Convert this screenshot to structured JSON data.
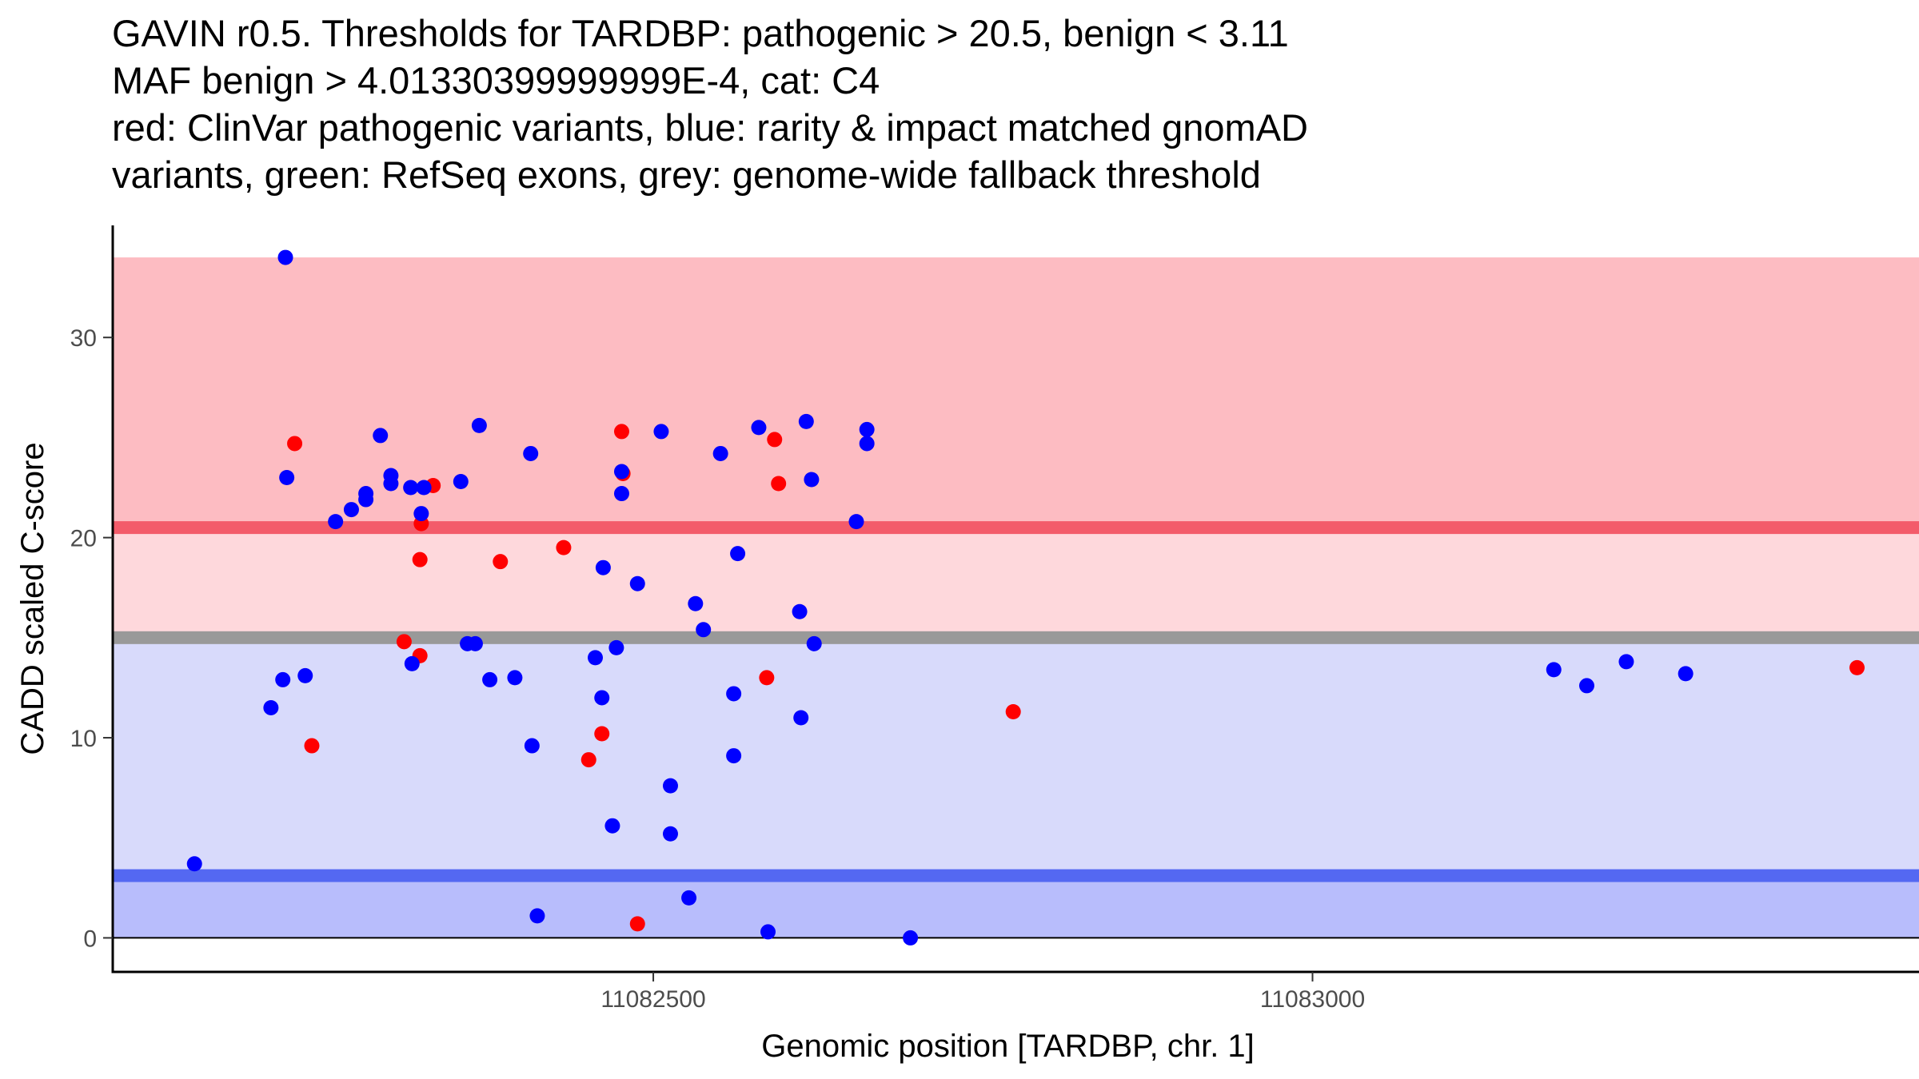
{
  "chart_data": {
    "type": "scatter",
    "title_lines": [
      "GAVIN r0.5. Thresholds for TARDBP: pathogenic > 20.5, benign < 3.11",
      "MAF benign > 4.01330399999999E-4, cat: C4",
      "red: ClinVar pathogenic variants, blue: rarity & impact matched gnomAD",
      "variants, green: RefSeq exons, grey: genome-wide fallback threshold"
    ],
    "xlabel": "Genomic position [TARDBP, chr. 1]",
    "ylabel": "CADD scaled C-score",
    "xlim": [
      11082090,
      11083460
    ],
    "ylim": [
      -1.7,
      35.6
    ],
    "x_ticks": [
      {
        "value": 11082500,
        "label": "11082500"
      },
      {
        "value": 11083000,
        "label": "11083000"
      }
    ],
    "y_ticks": [
      {
        "value": 0,
        "label": "0"
      },
      {
        "value": 10,
        "label": "10"
      },
      {
        "value": 20,
        "label": "20"
      },
      {
        "value": 30,
        "label": "30"
      }
    ],
    "thresholds": {
      "pathogenic": 20.5,
      "benign": 3.11,
      "genome_wide_fallback": 15
    },
    "bands": [
      {
        "name": "pathogenic-zone",
        "y0": 20.5,
        "y1": 34,
        "color": "#fdbcc2"
      },
      {
        "name": "between-zone",
        "y0": 15,
        "y1": 20.5,
        "color": "#fed8dc"
      },
      {
        "name": "below-fallback-zone",
        "y0": 3.11,
        "y1": 15,
        "color": "#d8dafb"
      },
      {
        "name": "benign-zone",
        "y0": 0,
        "y1": 3.11,
        "color": "#b8bdfc"
      }
    ],
    "threshold_lines": [
      {
        "name": "pathogenic-threshold-line",
        "y": 20.5,
        "color": "#f35b6a"
      },
      {
        "name": "fallback-threshold-line",
        "y": 15,
        "color": "#999999"
      },
      {
        "name": "benign-threshold-line",
        "y": 3.11,
        "color": "#5468f2"
      }
    ],
    "series": [
      {
        "name": "ClinVar pathogenic variants",
        "color": "#ff0000",
        "points": [
          [
            11082228,
            24.7
          ],
          [
            11082241,
            9.6
          ],
          [
            11082311,
            14.8
          ],
          [
            11082323,
            18.9
          ],
          [
            11082324,
            20.7
          ],
          [
            11082333,
            22.6
          ],
          [
            11082323,
            14.1
          ],
          [
            11082384,
            18.8
          ],
          [
            11082432,
            19.5
          ],
          [
            11082461,
            10.2
          ],
          [
            11082451,
            8.9
          ],
          [
            11082476,
            25.3
          ],
          [
            11082477,
            23.2
          ],
          [
            11082488,
            0.7
          ],
          [
            11082586,
            13.0
          ],
          [
            11082592,
            24.9
          ],
          [
            11082595,
            22.7
          ],
          [
            11082773,
            11.3
          ],
          [
            11083413,
            13.5
          ]
        ]
      },
      {
        "name": "rarity & impact matched gnomAD variants",
        "color": "#0000ff",
        "points": [
          [
            11082152,
            3.7
          ],
          [
            11082210,
            11.5
          ],
          [
            11082219,
            12.9
          ],
          [
            11082221,
            34.0
          ],
          [
            11082222,
            23.0
          ],
          [
            11082236,
            13.1
          ],
          [
            11082259,
            20.8
          ],
          [
            11082271,
            21.4
          ],
          [
            11082282,
            22.2
          ],
          [
            11082282,
            21.9
          ],
          [
            11082293,
            25.1
          ],
          [
            11082301,
            23.1
          ],
          [
            11082301,
            22.7
          ],
          [
            11082316,
            22.5
          ],
          [
            11082326,
            22.5
          ],
          [
            11082324,
            21.2
          ],
          [
            11082317,
            13.7
          ],
          [
            11082354,
            22.8
          ],
          [
            11082359,
            14.7
          ],
          [
            11082365,
            14.7
          ],
          [
            11082368,
            25.6
          ],
          [
            11082376,
            12.9
          ],
          [
            11082407,
            24.2
          ],
          [
            11082395,
            13.0
          ],
          [
            11082408,
            9.6
          ],
          [
            11082412,
            1.1
          ],
          [
            11082456,
            14.0
          ],
          [
            11082462,
            18.5
          ],
          [
            11082461,
            12.0
          ],
          [
            11082472,
            14.5
          ],
          [
            11082469,
            5.6
          ],
          [
            11082476,
            23.3
          ],
          [
            11082476,
            22.2
          ],
          [
            11082488,
            17.7
          ],
          [
            11082506,
            25.3
          ],
          [
            11082513,
            7.6
          ],
          [
            11082513,
            5.2
          ],
          [
            11082527,
            2.0
          ],
          [
            11082532,
            16.7
          ],
          [
            11082538,
            15.4
          ],
          [
            11082551,
            24.2
          ],
          [
            11082561,
            12.2
          ],
          [
            11082561,
            9.1
          ],
          [
            11082564,
            19.2
          ],
          [
            11082580,
            25.5
          ],
          [
            11082587,
            0.3
          ],
          [
            11082611,
            16.3
          ],
          [
            11082612,
            11.0
          ],
          [
            11082616,
            25.8
          ],
          [
            11082620,
            22.9
          ],
          [
            11082622,
            14.7
          ],
          [
            11082654,
            20.8
          ],
          [
            11082662,
            25.4
          ],
          [
            11082662,
            24.7
          ],
          [
            11082695,
            0.0
          ],
          [
            11083183,
            13.4
          ],
          [
            11083208,
            12.6
          ],
          [
            11083238,
            13.8
          ],
          [
            11083283,
            13.2
          ]
        ]
      }
    ]
  }
}
